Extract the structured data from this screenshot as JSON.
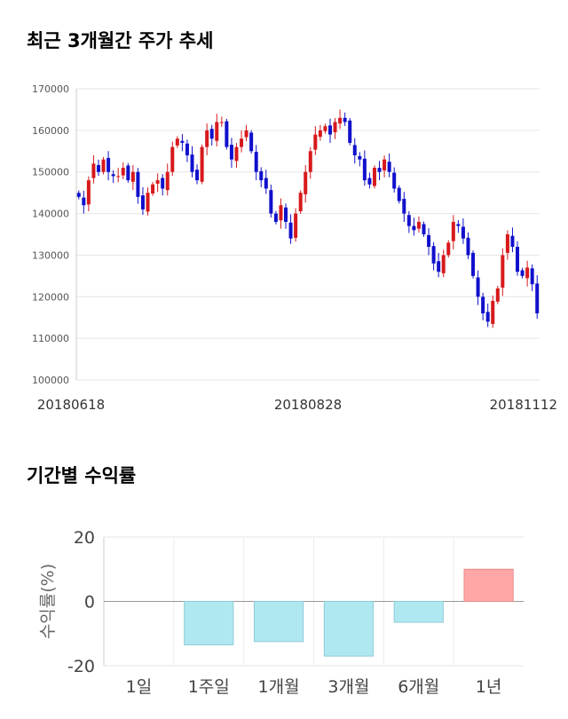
{
  "price_section": {
    "title": "최근 3개월간 주가 추세"
  },
  "returns_section": {
    "title": "기간별 수익률"
  },
  "colors": {
    "up": "#d7191c",
    "down": "#1010cc",
    "positive_bar": "#ffa6a6",
    "negative_bar": "#b0e8f2"
  },
  "chart_data": [
    {
      "type": "candlestick",
      "title": "최근 3개월간 주가 추세",
      "ylim": [
        100000,
        170000
      ],
      "y_ticks": [
        100000,
        110000,
        120000,
        130000,
        140000,
        150000,
        160000,
        170000
      ],
      "x_tick_labels": [
        "20180618",
        "20180828",
        "20181112"
      ],
      "grid": true,
      "close_series": [
        144000,
        142000,
        148000,
        152000,
        150000,
        153000,
        150000,
        149000,
        149000,
        151000,
        148000,
        150000,
        144000,
        141000,
        145000,
        147000,
        148000,
        146000,
        150000,
        156000,
        158000,
        157000,
        154000,
        150000,
        148000,
        156000,
        160000,
        158000,
        162000,
        162000,
        156000,
        153000,
        156000,
        158000,
        160000,
        155000,
        150000,
        148000,
        146000,
        140000,
        138000,
        142000,
        138000,
        134000,
        140000,
        145000,
        150000,
        155000,
        159000,
        160000,
        161000,
        159000,
        162000,
        163000,
        162000,
        157000,
        154000,
        153000,
        148000,
        147000,
        151000,
        150000,
        153000,
        150000,
        146000,
        143000,
        140000,
        137000,
        136000,
        138000,
        135000,
        132000,
        128000,
        126000,
        130000,
        133000,
        138000,
        137000,
        134000,
        130000,
        125000,
        120000,
        116000,
        114000,
        119000,
        122000,
        130000,
        135000,
        132000,
        126000,
        125000,
        127000,
        123000,
        116000
      ]
    },
    {
      "type": "bar",
      "categories": [
        "1일",
        "1주일",
        "1개월",
        "3개월",
        "6개월",
        "1년"
      ],
      "values": [
        0,
        -13.5,
        -12.5,
        -17,
        -6.5,
        10
      ],
      "ylabel": "수익률(%)",
      "ylim": [
        -20,
        20
      ],
      "y_ticks": [
        20,
        0,
        -20
      ],
      "grid": true
    }
  ]
}
